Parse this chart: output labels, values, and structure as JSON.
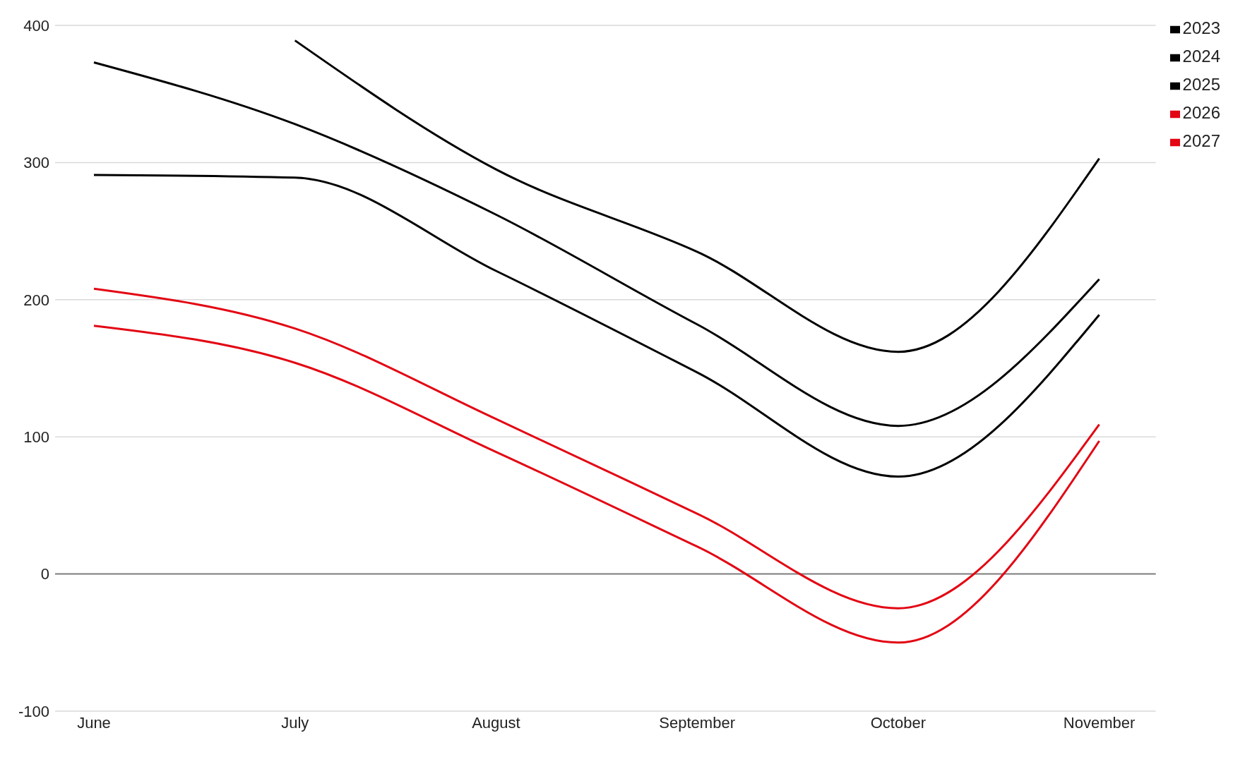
{
  "chart_data": {
    "type": "line",
    "categories": [
      "June",
      "July",
      "August",
      "September",
      "October",
      "November"
    ],
    "series": [
      {
        "name": "2023",
        "color": "#000000",
        "values": [
          null,
          389,
          295,
          235,
          162,
          303
        ]
      },
      {
        "name": "2024",
        "color": "#000000",
        "values": [
          373,
          328,
          262,
          182,
          108,
          215
        ]
      },
      {
        "name": "2025",
        "color": "#000000",
        "values": [
          291,
          289,
          221,
          147,
          71,
          189
        ]
      },
      {
        "name": "2026",
        "color": "#e30613",
        "values": [
          208,
          179,
          113,
          44,
          -25,
          109
        ]
      },
      {
        "name": "2027",
        "color": "#e30613",
        "values": [
          181,
          154,
          89,
          20,
          -50,
          97
        ]
      }
    ],
    "ylim": [
      -100,
      400
    ],
    "yticks": [
      -100,
      0,
      100,
      200,
      300,
      400
    ],
    "grid": "y",
    "legend": "top right",
    "marker": "none",
    "line_style": "solid",
    "ref_lines": [
      {
        "axis": "y",
        "value": 0,
        "color": "#808080"
      }
    ]
  }
}
